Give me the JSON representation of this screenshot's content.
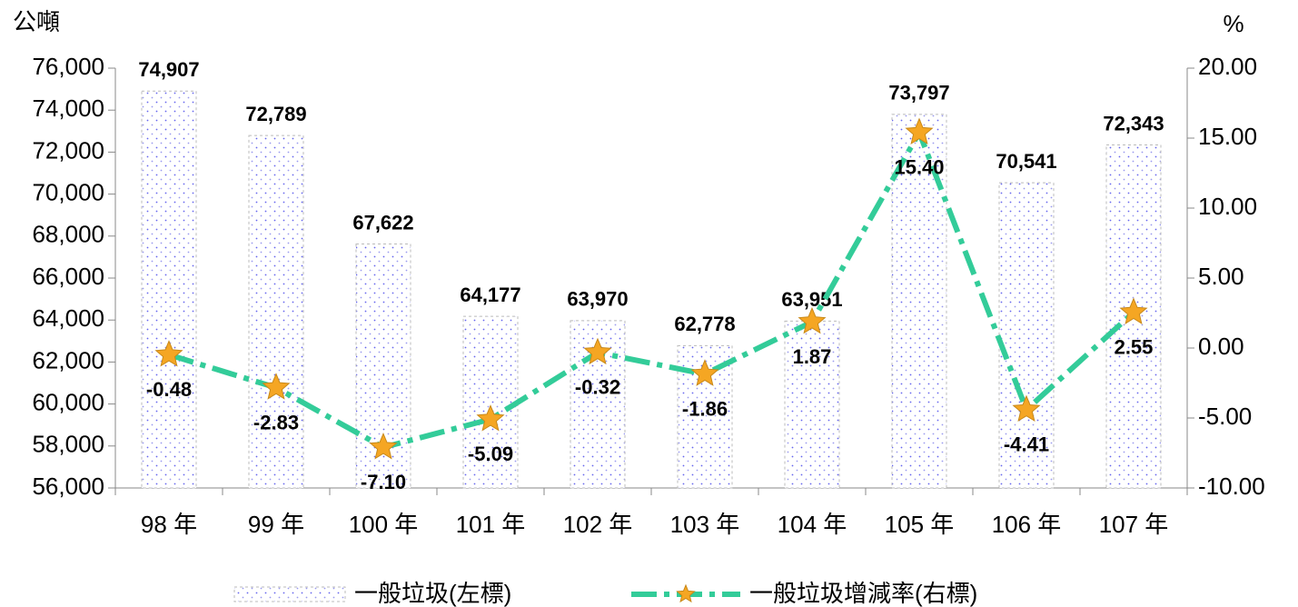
{
  "chart_data": {
    "type": "bar_line",
    "y_label": "公噸",
    "y2_label": "%",
    "categories": [
      "98 年",
      "99 年",
      "100 年",
      "101 年",
      "102 年",
      "103 年",
      "104 年",
      "105 年",
      "106 年",
      "107 年"
    ],
    "series": [
      {
        "name": "一般垃圾(左標)",
        "type": "bar",
        "color": "#6666ee",
        "values": [
          74907,
          72789,
          67622,
          64177,
          63970,
          62778,
          63951,
          73797,
          70541,
          72343
        ],
        "value_labels": [
          "74,907",
          "72,789",
          "67,622",
          "64,177",
          "63,970",
          "62,778",
          "63,951",
          "73,797",
          "70,541",
          "72,343"
        ]
      },
      {
        "name": "一般垃圾增減率(右標)",
        "type": "line",
        "axis": "y2",
        "color": "#33cc99",
        "marker_color": "#f5a623",
        "values": [
          -0.48,
          -2.83,
          -7.1,
          -5.09,
          -0.32,
          -1.86,
          1.87,
          15.4,
          -4.41,
          2.55
        ],
        "value_labels": [
          "-0.48",
          "-2.83",
          "-7.10",
          "-5.09",
          "-0.32",
          "-1.86",
          "1.87",
          "15.40",
          "-4.41",
          "2.55"
        ]
      }
    ],
    "positive_label_color": "#1a1ae6",
    "negative_label_color": "#e8175d",
    "bar_label_color": "#666666",
    "ylim": [
      56000,
      76000
    ],
    "yticks": [
      {
        "value": 56000,
        "label": "56,000"
      },
      {
        "value": 58000,
        "label": "58,000"
      },
      {
        "value": 60000,
        "label": "60,000"
      },
      {
        "value": 62000,
        "label": "62,000"
      },
      {
        "value": 64000,
        "label": "64,000"
      },
      {
        "value": 66000,
        "label": "66,000"
      },
      {
        "value": 68000,
        "label": "68,000"
      },
      {
        "value": 70000,
        "label": "70,000"
      },
      {
        "value": 72000,
        "label": "72,000"
      },
      {
        "value": 74000,
        "label": "74,000"
      },
      {
        "value": 76000,
        "label": "76,000"
      }
    ],
    "y2lim": [
      -10,
      20
    ],
    "y2ticks": [
      {
        "value": -10,
        "label": "-10.00"
      },
      {
        "value": -5,
        "label": "-5.00"
      },
      {
        "value": 0,
        "label": "0.00"
      },
      {
        "value": 5,
        "label": "5.00"
      },
      {
        "value": 10,
        "label": "10.00"
      },
      {
        "value": 15,
        "label": "15.00"
      },
      {
        "value": 20,
        "label": "20.00"
      }
    ],
    "grid": false
  }
}
